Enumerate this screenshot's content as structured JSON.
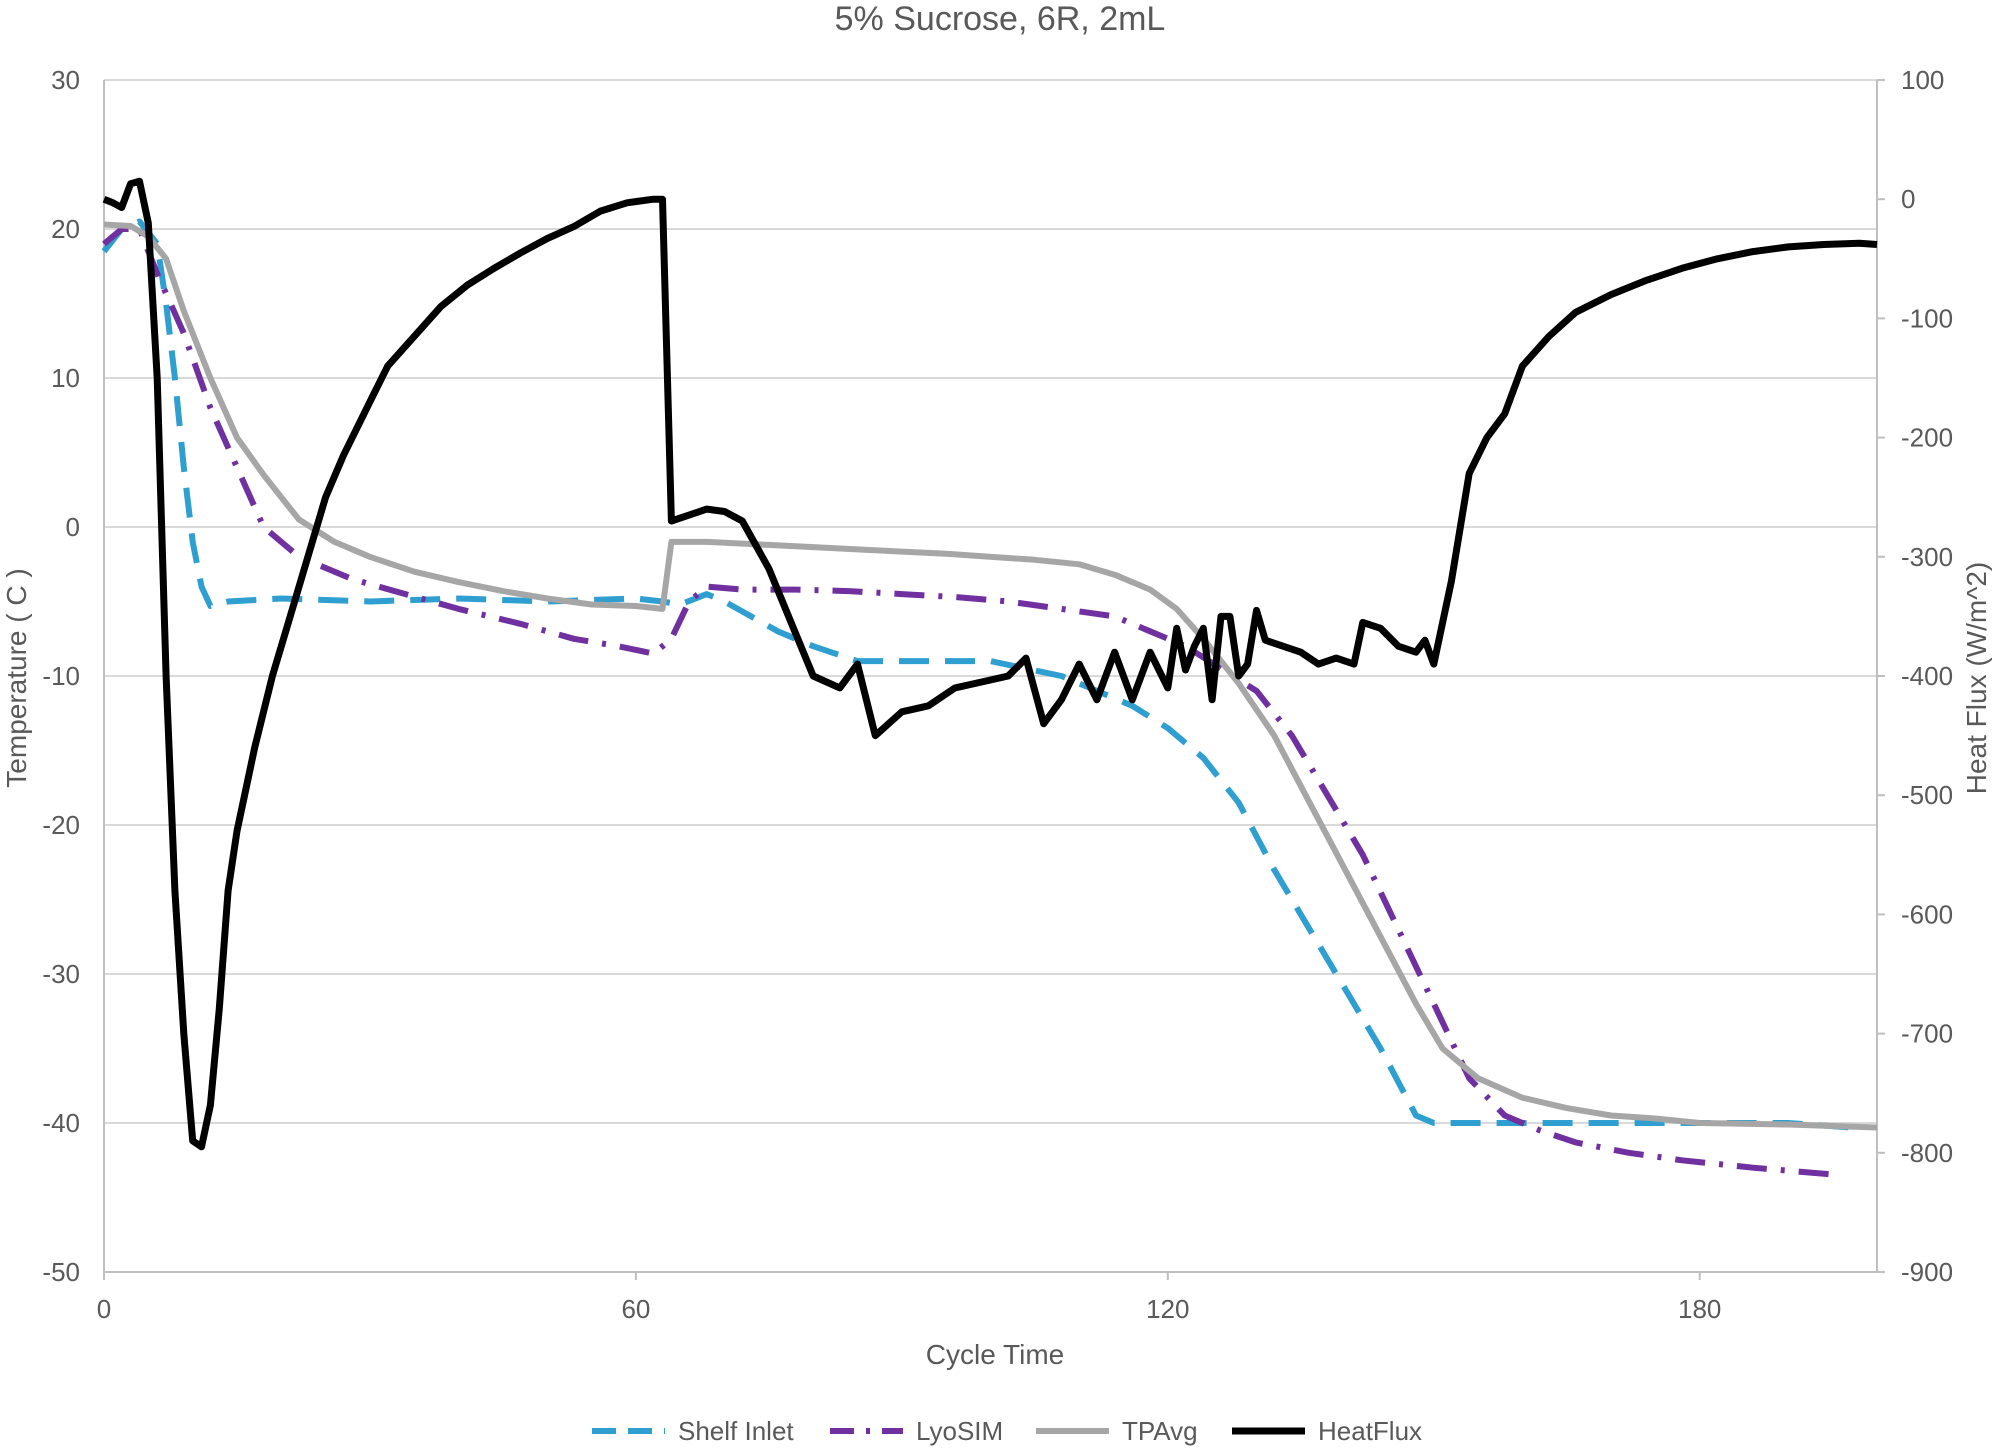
{
  "chart_data": {
    "type": "line",
    "title": "5% Sucrose, 6R, 2mL",
    "xlabel": "Cycle Time",
    "ylabel": "Temperature ( C )",
    "y2label": "Heat Flux (W/m^2)",
    "xlim": [
      0,
      200
    ],
    "ylim": [
      -50,
      30
    ],
    "y2lim": [
      -900,
      100
    ],
    "x_ticks": [
      0,
      60,
      120,
      180
    ],
    "y_ticks": [
      30,
      20,
      10,
      0,
      -10,
      -20,
      -30,
      -40,
      -50
    ],
    "y2_ticks": [
      100,
      0,
      -100,
      -200,
      -300,
      -400,
      -500,
      -600,
      -700,
      -800,
      -900
    ],
    "grid": true,
    "legend_position": "bottom",
    "series": [
      {
        "name": "Shelf Inlet",
        "axis": "left",
        "color": "#2e9fd0",
        "style": "dashed",
        "points": [
          [
            0,
            18.5
          ],
          [
            2,
            20
          ],
          [
            4,
            20.5
          ],
          [
            6,
            19
          ],
          [
            7,
            15
          ],
          [
            8,
            10
          ],
          [
            9,
            4
          ],
          [
            10,
            -1
          ],
          [
            11,
            -4
          ],
          [
            12,
            -5.3
          ],
          [
            14,
            -5
          ],
          [
            20,
            -4.8
          ],
          [
            30,
            -5
          ],
          [
            40,
            -4.8
          ],
          [
            50,
            -5
          ],
          [
            60,
            -4.8
          ],
          [
            63,
            -5
          ],
          [
            65,
            -5.2
          ],
          [
            68,
            -4.5
          ],
          [
            70,
            -5
          ],
          [
            73,
            -6
          ],
          [
            76,
            -7
          ],
          [
            80,
            -8
          ],
          [
            85,
            -9
          ],
          [
            90,
            -9
          ],
          [
            95,
            -9
          ],
          [
            100,
            -9
          ],
          [
            104,
            -9.5
          ],
          [
            108,
            -10
          ],
          [
            112,
            -11
          ],
          [
            116,
            -12
          ],
          [
            120,
            -13.5
          ],
          [
            124,
            -15.5
          ],
          [
            128,
            -18.5
          ],
          [
            132,
            -23
          ],
          [
            136,
            -27
          ],
          [
            140,
            -31
          ],
          [
            144,
            -35
          ],
          [
            148,
            -39.5
          ],
          [
            150,
            -40
          ],
          [
            153,
            -40
          ],
          [
            160,
            -40
          ],
          [
            170,
            -40
          ],
          [
            180,
            -40
          ],
          [
            190,
            -40
          ],
          [
            197,
            -40.3
          ]
        ]
      },
      {
        "name": "LyoSIM",
        "axis": "left",
        "color": "#7030a0",
        "style": "dashdot",
        "points": [
          [
            0,
            19
          ],
          [
            2,
            20
          ],
          [
            4,
            20
          ],
          [
            6,
            17
          ],
          [
            9,
            13
          ],
          [
            12,
            8
          ],
          [
            15,
            4
          ],
          [
            18,
            0
          ],
          [
            22,
            -2
          ],
          [
            28,
            -3.5
          ],
          [
            34,
            -4.5
          ],
          [
            40,
            -5.5
          ],
          [
            47,
            -6.5
          ],
          [
            53,
            -7.5
          ],
          [
            58,
            -8
          ],
          [
            62,
            -8.5
          ],
          [
            64,
            -7.5
          ],
          [
            66,
            -5
          ],
          [
            68,
            -4
          ],
          [
            72,
            -4.2
          ],
          [
            78,
            -4.2
          ],
          [
            84,
            -4.3
          ],
          [
            90,
            -4.5
          ],
          [
            96,
            -4.7
          ],
          [
            102,
            -5
          ],
          [
            108,
            -5.5
          ],
          [
            114,
            -6
          ],
          [
            118,
            -7
          ],
          [
            122,
            -8
          ],
          [
            126,
            -9.5
          ],
          [
            130,
            -11
          ],
          [
            134,
            -14
          ],
          [
            138,
            -18
          ],
          [
            142,
            -22
          ],
          [
            146,
            -27
          ],
          [
            150,
            -32
          ],
          [
            154,
            -37
          ],
          [
            158,
            -39.5
          ],
          [
            162,
            -40.5
          ],
          [
            166,
            -41.3
          ],
          [
            172,
            -42
          ],
          [
            178,
            -42.5
          ],
          [
            186,
            -43
          ],
          [
            196,
            -43.5
          ]
        ]
      },
      {
        "name": "TPAvg",
        "axis": "left",
        "color": "#a6a6a6",
        "style": "solid",
        "points": [
          [
            0,
            20.3
          ],
          [
            3,
            20.2
          ],
          [
            5,
            19.5
          ],
          [
            7,
            18
          ],
          [
            9,
            14.5
          ],
          [
            12,
            10
          ],
          [
            15,
            6
          ],
          [
            18,
            3.5
          ],
          [
            22,
            0.5
          ],
          [
            26,
            -1
          ],
          [
            30,
            -2
          ],
          [
            35,
            -3
          ],
          [
            40,
            -3.7
          ],
          [
            45,
            -4.3
          ],
          [
            50,
            -4.8
          ],
          [
            55,
            -5.2
          ],
          [
            60,
            -5.3
          ],
          [
            63,
            -5.5
          ],
          [
            64,
            -1
          ],
          [
            68,
            -1
          ],
          [
            75,
            -1.2
          ],
          [
            85,
            -1.5
          ],
          [
            95,
            -1.8
          ],
          [
            105,
            -2.2
          ],
          [
            110,
            -2.5
          ],
          [
            114,
            -3.2
          ],
          [
            118,
            -4.2
          ],
          [
            121,
            -5.5
          ],
          [
            124,
            -7.5
          ],
          [
            128,
            -10.5
          ],
          [
            132,
            -14
          ],
          [
            136,
            -18.5
          ],
          [
            140,
            -23
          ],
          [
            144,
            -27.5
          ],
          [
            148,
            -32
          ],
          [
            151,
            -35
          ],
          [
            155,
            -37
          ],
          [
            160,
            -38.3
          ],
          [
            165,
            -39
          ],
          [
            170,
            -39.5
          ],
          [
            175,
            -39.7
          ],
          [
            180,
            -40
          ],
          [
            190,
            -40.1
          ],
          [
            200,
            -40.3
          ]
        ]
      },
      {
        "name": "HeatFlux",
        "axis": "right",
        "color": "#000000",
        "style": "solid",
        "points": [
          [
            0,
            0
          ],
          [
            1,
            -3
          ],
          [
            2,
            -7
          ],
          [
            3,
            13
          ],
          [
            4,
            15
          ],
          [
            5,
            -20
          ],
          [
            6,
            -150
          ],
          [
            7,
            -400
          ],
          [
            8,
            -580
          ],
          [
            9,
            -700
          ],
          [
            10,
            -790
          ],
          [
            11,
            -795
          ],
          [
            12,
            -760
          ],
          [
            13,
            -680
          ],
          [
            14,
            -580
          ],
          [
            15,
            -530
          ],
          [
            17,
            -460
          ],
          [
            19,
            -400
          ],
          [
            21,
            -350
          ],
          [
            23,
            -300
          ],
          [
            25,
            -250
          ],
          [
            27,
            -215
          ],
          [
            30,
            -170
          ],
          [
            32,
            -140
          ],
          [
            35,
            -115
          ],
          [
            38,
            -90
          ],
          [
            41,
            -72
          ],
          [
            44,
            -58
          ],
          [
            47,
            -45
          ],
          [
            50,
            -33
          ],
          [
            53,
            -23
          ],
          [
            56,
            -10
          ],
          [
            59,
            -3
          ],
          [
            62,
            0
          ],
          [
            63,
            0
          ],
          [
            64,
            -270
          ],
          [
            66,
            -265
          ],
          [
            68,
            -260
          ],
          [
            70,
            -262
          ],
          [
            72,
            -270
          ],
          [
            75,
            -310
          ],
          [
            80,
            -400
          ],
          [
            83,
            -410
          ],
          [
            85,
            -390
          ],
          [
            87,
            -450
          ],
          [
            90,
            -430
          ],
          [
            93,
            -425
          ],
          [
            96,
            -410
          ],
          [
            99,
            -405
          ],
          [
            102,
            -400
          ],
          [
            104,
            -385
          ],
          [
            106,
            -440
          ],
          [
            108,
            -420
          ],
          [
            110,
            -390
          ],
          [
            112,
            -420
          ],
          [
            114,
            -380
          ],
          [
            116,
            -420
          ],
          [
            118,
            -380
          ],
          [
            120,
            -410
          ],
          [
            121,
            -360
          ],
          [
            122,
            -395
          ],
          [
            123,
            -375
          ],
          [
            124,
            -360
          ],
          [
            125,
            -420
          ],
          [
            126,
            -350
          ],
          [
            127,
            -350
          ],
          [
            128,
            -400
          ],
          [
            129,
            -390
          ],
          [
            130,
            -345
          ],
          [
            131,
            -370
          ],
          [
            133,
            -375
          ],
          [
            135,
            -380
          ],
          [
            137,
            -390
          ],
          [
            139,
            -385
          ],
          [
            141,
            -390
          ],
          [
            142,
            -355
          ],
          [
            144,
            -360
          ],
          [
            146,
            -375
          ],
          [
            148,
            -380
          ],
          [
            149,
            -370
          ],
          [
            150,
            -390
          ],
          [
            152,
            -320
          ],
          [
            154,
            -230
          ],
          [
            156,
            -200
          ],
          [
            158,
            -180
          ],
          [
            160,
            -140
          ],
          [
            163,
            -115
          ],
          [
            166,
            -95
          ],
          [
            170,
            -80
          ],
          [
            174,
            -68
          ],
          [
            178,
            -58
          ],
          [
            182,
            -50
          ],
          [
            186,
            -44
          ],
          [
            190,
            -40
          ],
          [
            194,
            -38
          ],
          [
            198,
            -37
          ],
          [
            200,
            -38
          ]
        ]
      }
    ]
  }
}
